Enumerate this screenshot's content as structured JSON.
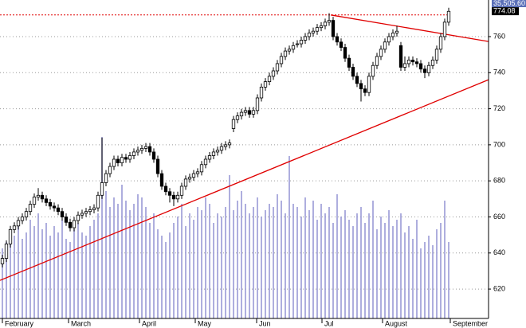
{
  "chart_data": {
    "type": "candlestick",
    "ohlc": [
      [
        634,
        639,
        632,
        637
      ],
      [
        637,
        647,
        635,
        645
      ],
      [
        645,
        655,
        643,
        653
      ],
      [
        653,
        657,
        651,
        655
      ],
      [
        655,
        660,
        653,
        658
      ],
      [
        658,
        662,
        656,
        660
      ],
      [
        660,
        665,
        658,
        663
      ],
      [
        663,
        669,
        661,
        667
      ],
      [
        667,
        673,
        665,
        671
      ],
      [
        671,
        676,
        669,
        672
      ],
      [
        672,
        674,
        668,
        670
      ],
      [
        670,
        672,
        666,
        668
      ],
      [
        668,
        670,
        664,
        666
      ],
      [
        666,
        668,
        663,
        665
      ],
      [
        665,
        667,
        661,
        663
      ],
      [
        663,
        665,
        658,
        660
      ],
      [
        660,
        662,
        655,
        657
      ],
      [
        657,
        659,
        652,
        654
      ],
      [
        654,
        660,
        652,
        658
      ],
      [
        658,
        663,
        656,
        661
      ],
      [
        661,
        664,
        659,
        662
      ],
      [
        662,
        665,
        660,
        663
      ],
      [
        663,
        666,
        661,
        664
      ],
      [
        664,
        667,
        662,
        665
      ],
      [
        665,
        674,
        663,
        672
      ],
      [
        672,
        704,
        670,
        679
      ],
      [
        679,
        686,
        677,
        684
      ],
      [
        684,
        690,
        682,
        688
      ],
      [
        688,
        694,
        686,
        692
      ],
      [
        692,
        694,
        688,
        690
      ],
      [
        690,
        695,
        688,
        693
      ],
      [
        693,
        695,
        690,
        692
      ],
      [
        692,
        696,
        690,
        694
      ],
      [
        694,
        698,
        692,
        696
      ],
      [
        696,
        699,
        694,
        697
      ],
      [
        697,
        700,
        695,
        698
      ],
      [
        698,
        701,
        696,
        699
      ],
      [
        699,
        701,
        694,
        696
      ],
      [
        696,
        698,
        690,
        692
      ],
      [
        692,
        694,
        682,
        684
      ],
      [
        684,
        686,
        675,
        677
      ],
      [
        677,
        679,
        672,
        674
      ],
      [
        674,
        676,
        668,
        672
      ],
      [
        672,
        674,
        666,
        670
      ],
      [
        670,
        674,
        668,
        672
      ],
      [
        672,
        679,
        670,
        677
      ],
      [
        677,
        683,
        675,
        681
      ],
      [
        681,
        684,
        679,
        682
      ],
      [
        682,
        686,
        680,
        684
      ],
      [
        684,
        687,
        682,
        685
      ],
      [
        685,
        691,
        683,
        689
      ],
      [
        689,
        694,
        687,
        692
      ],
      [
        692,
        696,
        690,
        694
      ],
      [
        694,
        698,
        692,
        696
      ],
      [
        696,
        699,
        694,
        697
      ],
      [
        697,
        701,
        695,
        699
      ],
      [
        699,
        702,
        697,
        700
      ],
      [
        700,
        703,
        698,
        701
      ],
      [
        709,
        716,
        707,
        714
      ],
      [
        714,
        718,
        712,
        716
      ],
      [
        716,
        720,
        714,
        718
      ],
      [
        718,
        721,
        716,
        719
      ],
      [
        719,
        721,
        715,
        717
      ],
      [
        717,
        721,
        715,
        719
      ],
      [
        719,
        728,
        717,
        726
      ],
      [
        726,
        734,
        724,
        732
      ],
      [
        732,
        737,
        730,
        735
      ],
      [
        735,
        740,
        733,
        738
      ],
      [
        738,
        743,
        736,
        741
      ],
      [
        741,
        747,
        739,
        745
      ],
      [
        745,
        751,
        743,
        749
      ],
      [
        749,
        754,
        747,
        752
      ],
      [
        752,
        755,
        750,
        753
      ],
      [
        753,
        757,
        751,
        755
      ],
      [
        756,
        758,
        754,
        756
      ],
      [
        756,
        760,
        754,
        758
      ],
      [
        758,
        762,
        756,
        760
      ],
      [
        760,
        764,
        758,
        762
      ],
      [
        762,
        765,
        760,
        763
      ],
      [
        763,
        767,
        761,
        765
      ],
      [
        765,
        768,
        763,
        766
      ],
      [
        766,
        770,
        764,
        768
      ],
      [
        768,
        773,
        766,
        769
      ],
      [
        769,
        771,
        758,
        760
      ],
      [
        760,
        762,
        755,
        757
      ],
      [
        757,
        759,
        752,
        754
      ],
      [
        754,
        756,
        746,
        748
      ],
      [
        748,
        750,
        741,
        743
      ],
      [
        743,
        745,
        736,
        738
      ],
      [
        738,
        740,
        732,
        734
      ],
      [
        734,
        736,
        724,
        731
      ],
      [
        731,
        733,
        727,
        729
      ],
      [
        729,
        740,
        727,
        738
      ],
      [
        738,
        746,
        736,
        744
      ],
      [
        744,
        751,
        742,
        749
      ],
      [
        749,
        755,
        747,
        753
      ],
      [
        753,
        759,
        751,
        757
      ],
      [
        757,
        762,
        755,
        760
      ],
      [
        760,
        764,
        758,
        762
      ],
      [
        762,
        766,
        760,
        763
      ],
      [
        755,
        757,
        741,
        743
      ],
      [
        743,
        749,
        741,
        745
      ],
      [
        745,
        749,
        743,
        747
      ],
      [
        747,
        749,
        744,
        746
      ],
      [
        746,
        748,
        743,
        745
      ],
      [
        745,
        747,
        740,
        742
      ],
      [
        742,
        744,
        737,
        740
      ],
      [
        740,
        746,
        738,
        744
      ],
      [
        744,
        749,
        742,
        747
      ],
      [
        747,
        755,
        745,
        753
      ],
      [
        753,
        762,
        751,
        760
      ],
      [
        760,
        770,
        758,
        768
      ],
      [
        768,
        776,
        766,
        774
      ]
    ],
    "volume": [
      22,
      24,
      28,
      26,
      30,
      25,
      27,
      31,
      29,
      33,
      28,
      30,
      26,
      29,
      27,
      31,
      25,
      24,
      28,
      30,
      27,
      26,
      29,
      31,
      33,
      57,
      40,
      35,
      38,
      36,
      42,
      37,
      34,
      36,
      39,
      38,
      35,
      30,
      33,
      28,
      26,
      24,
      27,
      30,
      32,
      36,
      29,
      33,
      31,
      35,
      34,
      38,
      36,
      30,
      33,
      32,
      35,
      45,
      34,
      37,
      40,
      36,
      33,
      35,
      38,
      32,
      34,
      36,
      35,
      39,
      37,
      33,
      51,
      36,
      35,
      32,
      38,
      34,
      37,
      31,
      36,
      33,
      35,
      30,
      39,
      32,
      34,
      31,
      29,
      33,
      35,
      30,
      33,
      37,
      28,
      32,
      30,
      34,
      29,
      31,
      33,
      27,
      29,
      25,
      31,
      22,
      24,
      26,
      23,
      28,
      30,
      37,
      24
    ],
    "volume_color": "#9b9bd6",
    "y2lim": [
      0,
      100
    ],
    "xlim": [
      -0.6,
      122
    ],
    "xticks": [
      {
        "value": 0,
        "label": "February"
      },
      {
        "value": 16.6,
        "label": "March"
      },
      {
        "value": 34.4,
        "label": "April"
      },
      {
        "value": 48.4,
        "label": "May"
      },
      {
        "value": 63.8,
        "label": "Jun"
      },
      {
        "value": 80.2,
        "label": "Jul"
      },
      {
        "value": 95.4,
        "label": "August"
      },
      {
        "value": 112.4,
        "label": "September"
      }
    ],
    "ylim": [
      603.7,
      780.3
    ],
    "yticks": [
      620,
      640,
      660,
      680,
      700,
      720,
      740,
      760
    ],
    "grid": true,
    "trendlines": [
      {
        "x": [
          -0.6,
          122
        ],
        "y": [
          624.8,
          736.1
        ],
        "color": "#e00000"
      },
      {
        "x": [
          82.4,
          122
        ],
        "y": [
          772,
          757.3
        ],
        "color": "#e00000"
      }
    ],
    "reference_line": {
      "value": 772,
      "x": [
        -0.6,
        112.4
      ],
      "color": "#e00000"
    },
    "volume_label": "35,505.60",
    "last_price": 774.08
  }
}
